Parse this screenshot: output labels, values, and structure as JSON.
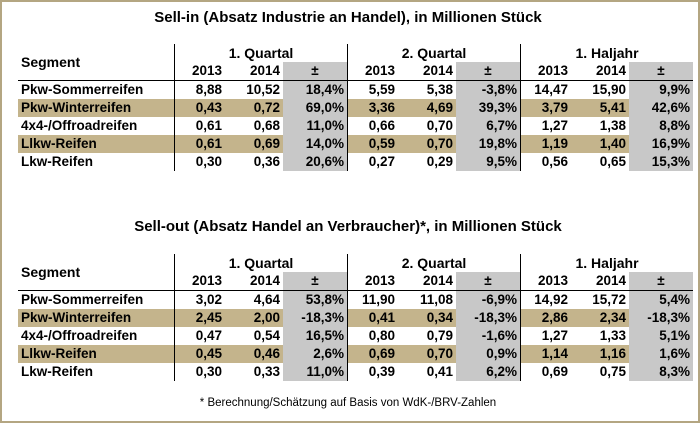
{
  "sellin": {
    "title": "Sell-in (Absatz Industrie an Handel), in Millionen Stück",
    "segment_header": "Segment",
    "periods": [
      "1. Quartal",
      "2. Quartal",
      "1. Haljahr"
    ],
    "years": [
      "2013",
      "2014",
      "±"
    ],
    "rows": [
      {
        "label": "Pkw-Sommerreifen",
        "values": [
          "8,88",
          "10,52",
          "18,4%",
          "5,59",
          "5,38",
          "-3,8%",
          "14,47",
          "15,90",
          "9,9%"
        ]
      },
      {
        "label": "Pkw-Winterreifen",
        "values": [
          "0,43",
          "0,72",
          "69,0%",
          "3,36",
          "4,69",
          "39,3%",
          "3,79",
          "5,41",
          "42,6%"
        ]
      },
      {
        "label": "4x4-/Offroadreifen",
        "values": [
          "0,61",
          "0,68",
          "11,0%",
          "0,66",
          "0,70",
          "6,7%",
          "1,27",
          "1,38",
          "8,8%"
        ]
      },
      {
        "label": "Llkw-Reifen",
        "values": [
          "0,61",
          "0,69",
          "14,0%",
          "0,59",
          "0,70",
          "19,8%",
          "1,19",
          "1,40",
          "16,9%"
        ]
      },
      {
        "label": "Lkw-Reifen",
        "values": [
          "0,30",
          "0,36",
          "20,6%",
          "0,27",
          "0,29",
          "9,5%",
          "0,56",
          "0,65",
          "15,3%"
        ]
      }
    ]
  },
  "sellout": {
    "title": "Sell-out (Absatz Handel an Verbraucher)*, in Millionen Stück",
    "segment_header": "Segment",
    "periods": [
      "1. Quartal",
      "2. Quartal",
      "1. Haljahr"
    ],
    "years": [
      "2013",
      "2014",
      "±"
    ],
    "rows": [
      {
        "label": "Pkw-Sommerreifen",
        "values": [
          "3,02",
          "4,64",
          "53,8%",
          "11,90",
          "11,08",
          "-6,9%",
          "14,92",
          "15,72",
          "5,4%"
        ]
      },
      {
        "label": "Pkw-Winterreifen",
        "values": [
          "2,45",
          "2,00",
          "-18,3%",
          "0,41",
          "0,34",
          "-18,3%",
          "2,86",
          "2,34",
          "-18,3%"
        ]
      },
      {
        "label": "4x4-/Offroadreifen",
        "values": [
          "0,47",
          "0,54",
          "16,5%",
          "0,80",
          "0,79",
          "-1,6%",
          "1,27",
          "1,33",
          "5,1%"
        ]
      },
      {
        "label": "Llkw-Reifen",
        "values": [
          "0,45",
          "0,46",
          "2,6%",
          "0,69",
          "0,70",
          "0,9%",
          "1,14",
          "1,16",
          "1,6%"
        ]
      },
      {
        "label": "Lkw-Reifen",
        "values": [
          "0,30",
          "0,33",
          "11,0%",
          "0,39",
          "0,41",
          "6,2%",
          "0,69",
          "0,75",
          "8,3%"
        ]
      }
    ]
  },
  "footnote": "* Berechnung/Schätzung auf Basis von WdK-/BRV-Zahlen",
  "colors": {
    "highlight_row": "#c4b48c",
    "change_cell": "#c8c8c8",
    "border": "#b4a682"
  }
}
